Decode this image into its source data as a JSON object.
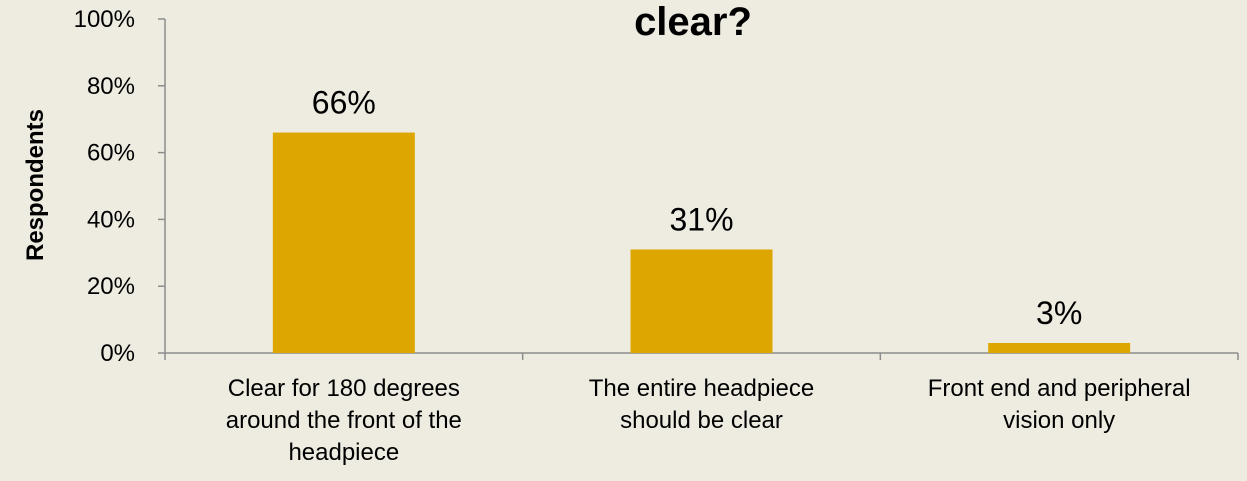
{
  "chart_data": {
    "type": "bar",
    "title": "clear?",
    "xlabel": "",
    "ylabel": "Respondents",
    "ylim": [
      0,
      100
    ],
    "yticks": [
      "0%",
      "20%",
      "40%",
      "60%",
      "80%",
      "100%"
    ],
    "categories": [
      [
        "Clear for 180 degrees",
        "around the front of the",
        "headpiece"
      ],
      [
        "The entire headpiece",
        "should be clear"
      ],
      [
        "Front end and peripheral",
        "vision only"
      ]
    ],
    "values": [
      66,
      31,
      3
    ],
    "data_labels": [
      "66%",
      "31%",
      "3%"
    ],
    "grid": false,
    "legend": "none",
    "bar_color": "#DDA600",
    "axis_color": "#8C8C8C"
  }
}
